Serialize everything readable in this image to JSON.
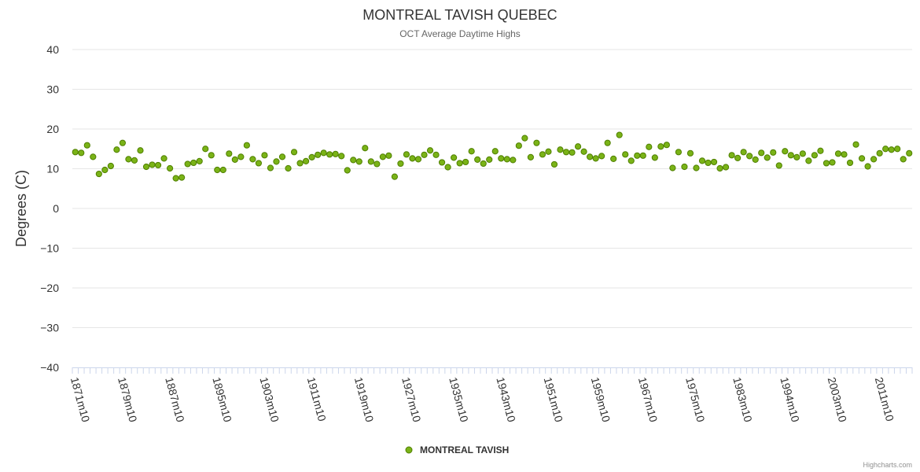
{
  "chart_data": {
    "type": "scatter",
    "title": "MONTREAL TAVISH QUEBEC",
    "subtitle": "OCT Average Daytime Highs",
    "ylabel": "Degrees (C)",
    "xlabel": "",
    "ylim": [
      -40,
      40
    ],
    "yticks": [
      40,
      30,
      20,
      10,
      0,
      -10,
      -20,
      -30,
      -40
    ],
    "xtick_labels": [
      "1871m10",
      "1879m10",
      "1887m10",
      "1895m10",
      "1903m10",
      "1911m10",
      "1919m10",
      "1927m10",
      "1935m10",
      "1943m10",
      "1951m10",
      "1959m10",
      "1967m10",
      "1975m10",
      "1983m10",
      "1994m10",
      "2003m10",
      "2011m10"
    ],
    "legend": {
      "position": "bottom-center"
    },
    "colors": {
      "marker_fill": "#7ab317",
      "marker_stroke": "#4f7f00",
      "grid": "#e6e6e6",
      "axis": "#ccd6eb"
    },
    "series": [
      {
        "name": "MONTREAL TAVISH",
        "values": [
          14.2,
          14.0,
          15.9,
          13.0,
          8.7,
          9.7,
          10.7,
          14.8,
          16.5,
          12.4,
          12.1,
          14.6,
          10.5,
          11.0,
          10.9,
          12.6,
          10.1,
          7.6,
          7.8,
          11.2,
          11.5,
          11.9,
          15.0,
          13.4,
          9.7,
          9.7,
          13.8,
          12.3,
          13.0,
          15.9,
          12.4,
          11.4,
          13.4,
          10.2,
          11.8,
          13.0,
          10.1,
          14.2,
          11.4,
          11.9,
          12.9,
          13.5,
          14.0,
          13.6,
          13.7,
          13.2,
          9.6,
          12.2,
          11.8,
          15.2,
          11.8,
          11.2,
          13.0,
          13.3,
          8.0,
          11.3,
          13.6,
          12.6,
          12.4,
          13.5,
          14.6,
          13.5,
          11.6,
          10.4,
          12.8,
          11.4,
          11.7,
          14.4,
          12.3,
          11.3,
          12.3,
          14.4,
          12.6,
          12.4,
          12.2,
          15.8,
          17.7,
          12.9,
          16.5,
          13.6,
          14.3,
          11.1,
          14.8,
          14.2,
          14.1,
          15.6,
          14.3,
          13.0,
          12.6,
          13.2,
          16.5,
          12.5,
          18.5,
          13.6,
          12.0,
          13.3,
          13.3,
          15.5,
          12.8,
          15.6,
          16.0,
          10.2,
          14.2,
          10.5,
          13.9,
          10.2,
          12.0,
          11.5,
          11.7,
          10.1,
          10.4,
          13.4,
          12.7,
          14.2,
          13.2,
          12.3,
          14.0,
          12.8,
          14.1,
          10.8,
          14.4,
          13.4,
          12.9,
          13.8,
          12.0,
          13.4,
          14.5,
          11.4,
          11.6,
          13.8,
          13.6,
          11.5,
          16.1,
          12.6,
          10.6,
          12.4,
          13.9,
          15.0,
          14.8,
          15.0,
          12.4,
          13.9
        ]
      }
    ]
  },
  "credits": "Highcharts.com"
}
